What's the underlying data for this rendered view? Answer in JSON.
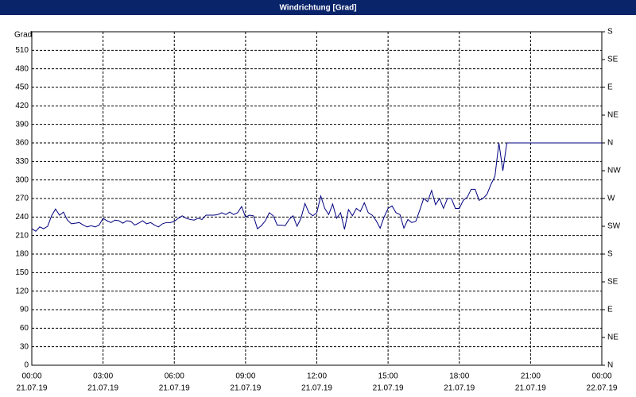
{
  "chart_data": {
    "type": "line",
    "title": "Windrichtung [Grad]",
    "ylabel": "Grad",
    "xlim": [
      0,
      1440
    ],
    "xticks": [
      {
        "value": 0,
        "label": "00:00"
      },
      {
        "value": 180,
        "label": "03:00"
      },
      {
        "value": 360,
        "label": "06:00"
      },
      {
        "value": 540,
        "label": "09:00"
      },
      {
        "value": 720,
        "label": "12:00"
      },
      {
        "value": 900,
        "label": "15:00"
      },
      {
        "value": 1080,
        "label": "18:00"
      },
      {
        "value": 1260,
        "label": "21:00"
      },
      {
        "value": 1440,
        "label": "00:00"
      }
    ],
    "xtick_dates": [
      "21.07.19",
      "21.07.19",
      "21.07.19",
      "21.07.19",
      "21.07.19",
      "21.07.19",
      "21.07.19",
      "21.07.19",
      "22.07.19"
    ],
    "ylim": [
      0,
      540
    ],
    "yticks": [
      0,
      30,
      60,
      90,
      120,
      150,
      180,
      210,
      240,
      270,
      300,
      330,
      360,
      390,
      420,
      450,
      480,
      510
    ],
    "y2lim": [
      0,
      540
    ],
    "y2ticks": [
      {
        "value": 0,
        "label": "N"
      },
      {
        "value": 45,
        "label": "NE"
      },
      {
        "value": 90,
        "label": "E"
      },
      {
        "value": 135,
        "label": "SE"
      },
      {
        "value": 180,
        "label": "S"
      },
      {
        "value": 225,
        "label": "SW"
      },
      {
        "value": 270,
        "label": "W"
      },
      {
        "value": 315,
        "label": "NW"
      },
      {
        "value": 360,
        "label": "N"
      },
      {
        "value": 405,
        "label": "NE"
      },
      {
        "value": 450,
        "label": "E"
      },
      {
        "value": 495,
        "label": "SE"
      },
      {
        "value": 540,
        "label": "S"
      }
    ],
    "grid": true,
    "x": [
      0,
      10,
      20,
      30,
      40,
      50,
      60,
      70,
      80,
      90,
      100,
      110,
      120,
      130,
      140,
      150,
      160,
      170,
      180,
      190,
      200,
      210,
      220,
      230,
      240,
      250,
      260,
      270,
      280,
      290,
      300,
      310,
      320,
      330,
      340,
      350,
      360,
      370,
      380,
      390,
      400,
      410,
      420,
      430,
      440,
      450,
      460,
      470,
      480,
      490,
      500,
      510,
      520,
      530,
      540,
      550,
      560,
      570,
      580,
      590,
      600,
      610,
      620,
      630,
      640,
      650,
      660,
      670,
      680,
      690,
      700,
      710,
      720,
      730,
      740,
      750,
      760,
      770,
      780,
      790,
      800,
      810,
      820,
      830,
      840,
      850,
      860,
      870,
      880,
      890,
      900,
      910,
      920,
      930,
      940,
      950,
      960,
      970,
      980,
      990,
      1000,
      1010,
      1020,
      1030,
      1040,
      1050,
      1060,
      1070,
      1080,
      1090,
      1100,
      1110,
      1120,
      1130,
      1140,
      1150,
      1160,
      1170,
      1180,
      1190,
      1200,
      1440
    ],
    "series": [
      {
        "color": "#000080",
        "values": [
          221,
          217,
          224,
          221,
          225,
          242,
          253,
          243,
          248,
          235,
          229,
          230,
          231,
          227,
          224,
          226,
          224,
          227,
          238,
          234,
          231,
          235,
          234,
          230,
          234,
          233,
          227,
          230,
          234,
          229,
          231,
          227,
          224,
          229,
          231,
          231,
          233,
          238,
          242,
          238,
          236,
          235,
          238,
          236,
          243,
          243,
          243,
          244,
          247,
          244,
          248,
          244,
          247,
          257,
          240,
          243,
          242,
          221,
          226,
          234,
          247,
          242,
          227,
          227,
          226,
          236,
          242,
          225,
          238,
          262,
          247,
          242,
          247,
          274,
          254,
          244,
          261,
          238,
          247,
          220,
          252,
          242,
          254,
          249,
          263,
          247,
          243,
          234,
          222,
          240,
          254,
          258,
          247,
          244,
          222,
          236,
          231,
          233,
          251,
          270,
          265,
          283,
          260,
          270,
          254,
          270,
          270,
          254,
          254,
          267,
          272,
          285,
          285,
          267,
          270,
          277,
          293,
          306,
          360,
          315,
          360,
          360
        ]
      }
    ]
  }
}
